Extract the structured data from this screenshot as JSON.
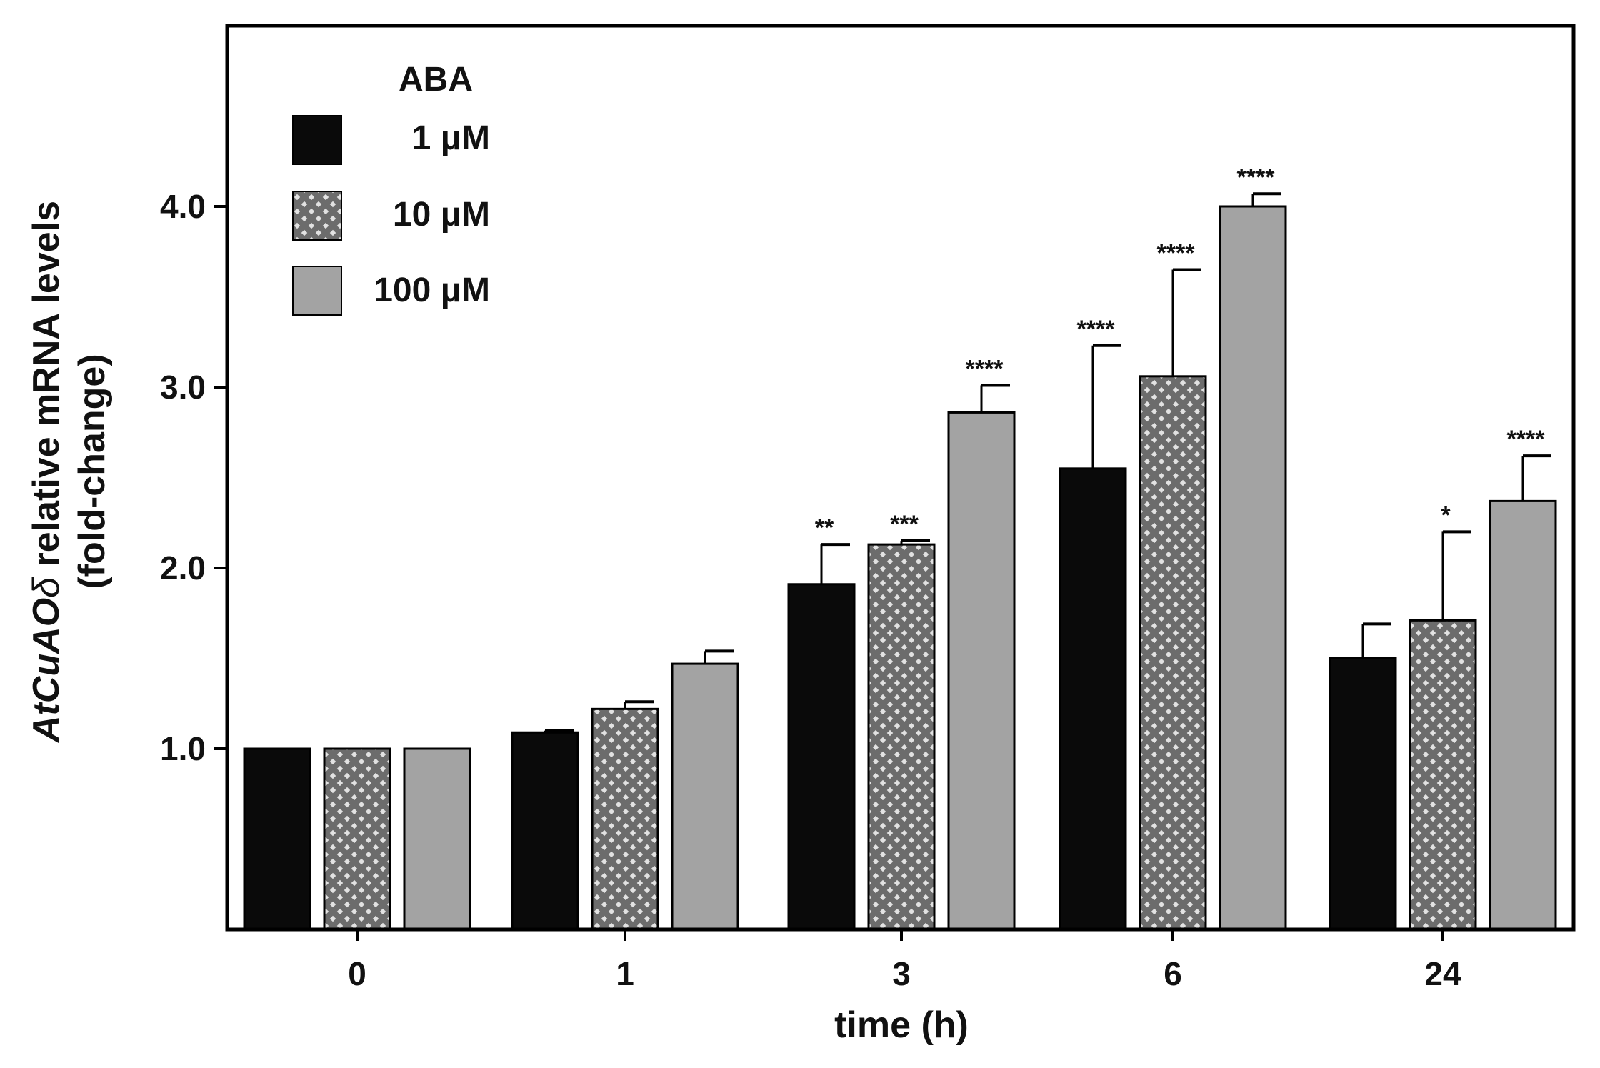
{
  "chart_data": {
    "type": "bar",
    "title": "",
    "xlabel": "time (h)",
    "ylabel": {
      "gene": "AtCuAO",
      "gene_suffix": "δ",
      "rest": " relative mRNA levels",
      "line2": "(fold-change)"
    },
    "categories": [
      "0",
      "1",
      "3",
      "6",
      "24"
    ],
    "ylim": [
      0,
      5.0
    ],
    "yticks": [
      1.0,
      2.0,
      3.0,
      4.0
    ],
    "ytick_labels": [
      "1.0",
      "2.0",
      "3.0",
      "4.0"
    ],
    "grid": false,
    "legend": {
      "title": "ABA",
      "position": "top-left"
    },
    "series": [
      {
        "name": "1 μM",
        "fill": "solid-black",
        "values": [
          1.0,
          1.09,
          1.91,
          2.55,
          1.5
        ],
        "errors": [
          0.0,
          0.01,
          0.22,
          0.68,
          0.19
        ],
        "significance": [
          "",
          "",
          "**",
          "****",
          ""
        ]
      },
      {
        "name": "10 μM",
        "fill": "crosshatch-gray",
        "values": [
          1.0,
          1.22,
          2.13,
          3.06,
          1.71
        ],
        "errors": [
          0.0,
          0.04,
          0.02,
          0.59,
          0.49
        ],
        "significance": [
          "",
          "",
          "***",
          "****",
          "*"
        ]
      },
      {
        "name": "100 μM",
        "fill": "solid-gray",
        "values": [
          1.0,
          1.47,
          2.86,
          4.0,
          2.37
        ],
        "errors": [
          0.0,
          0.07,
          0.15,
          0.07,
          0.25
        ],
        "significance": [
          "",
          "",
          "****",
          "****",
          "****"
        ]
      }
    ]
  },
  "colors": {
    "black_bar": "#0a0a0a",
    "gray_bar": "#a3a3a3",
    "hatch_bg": "#6c6c6c",
    "hatch_fg": "#e2e2e2",
    "axis": "#000000"
  }
}
